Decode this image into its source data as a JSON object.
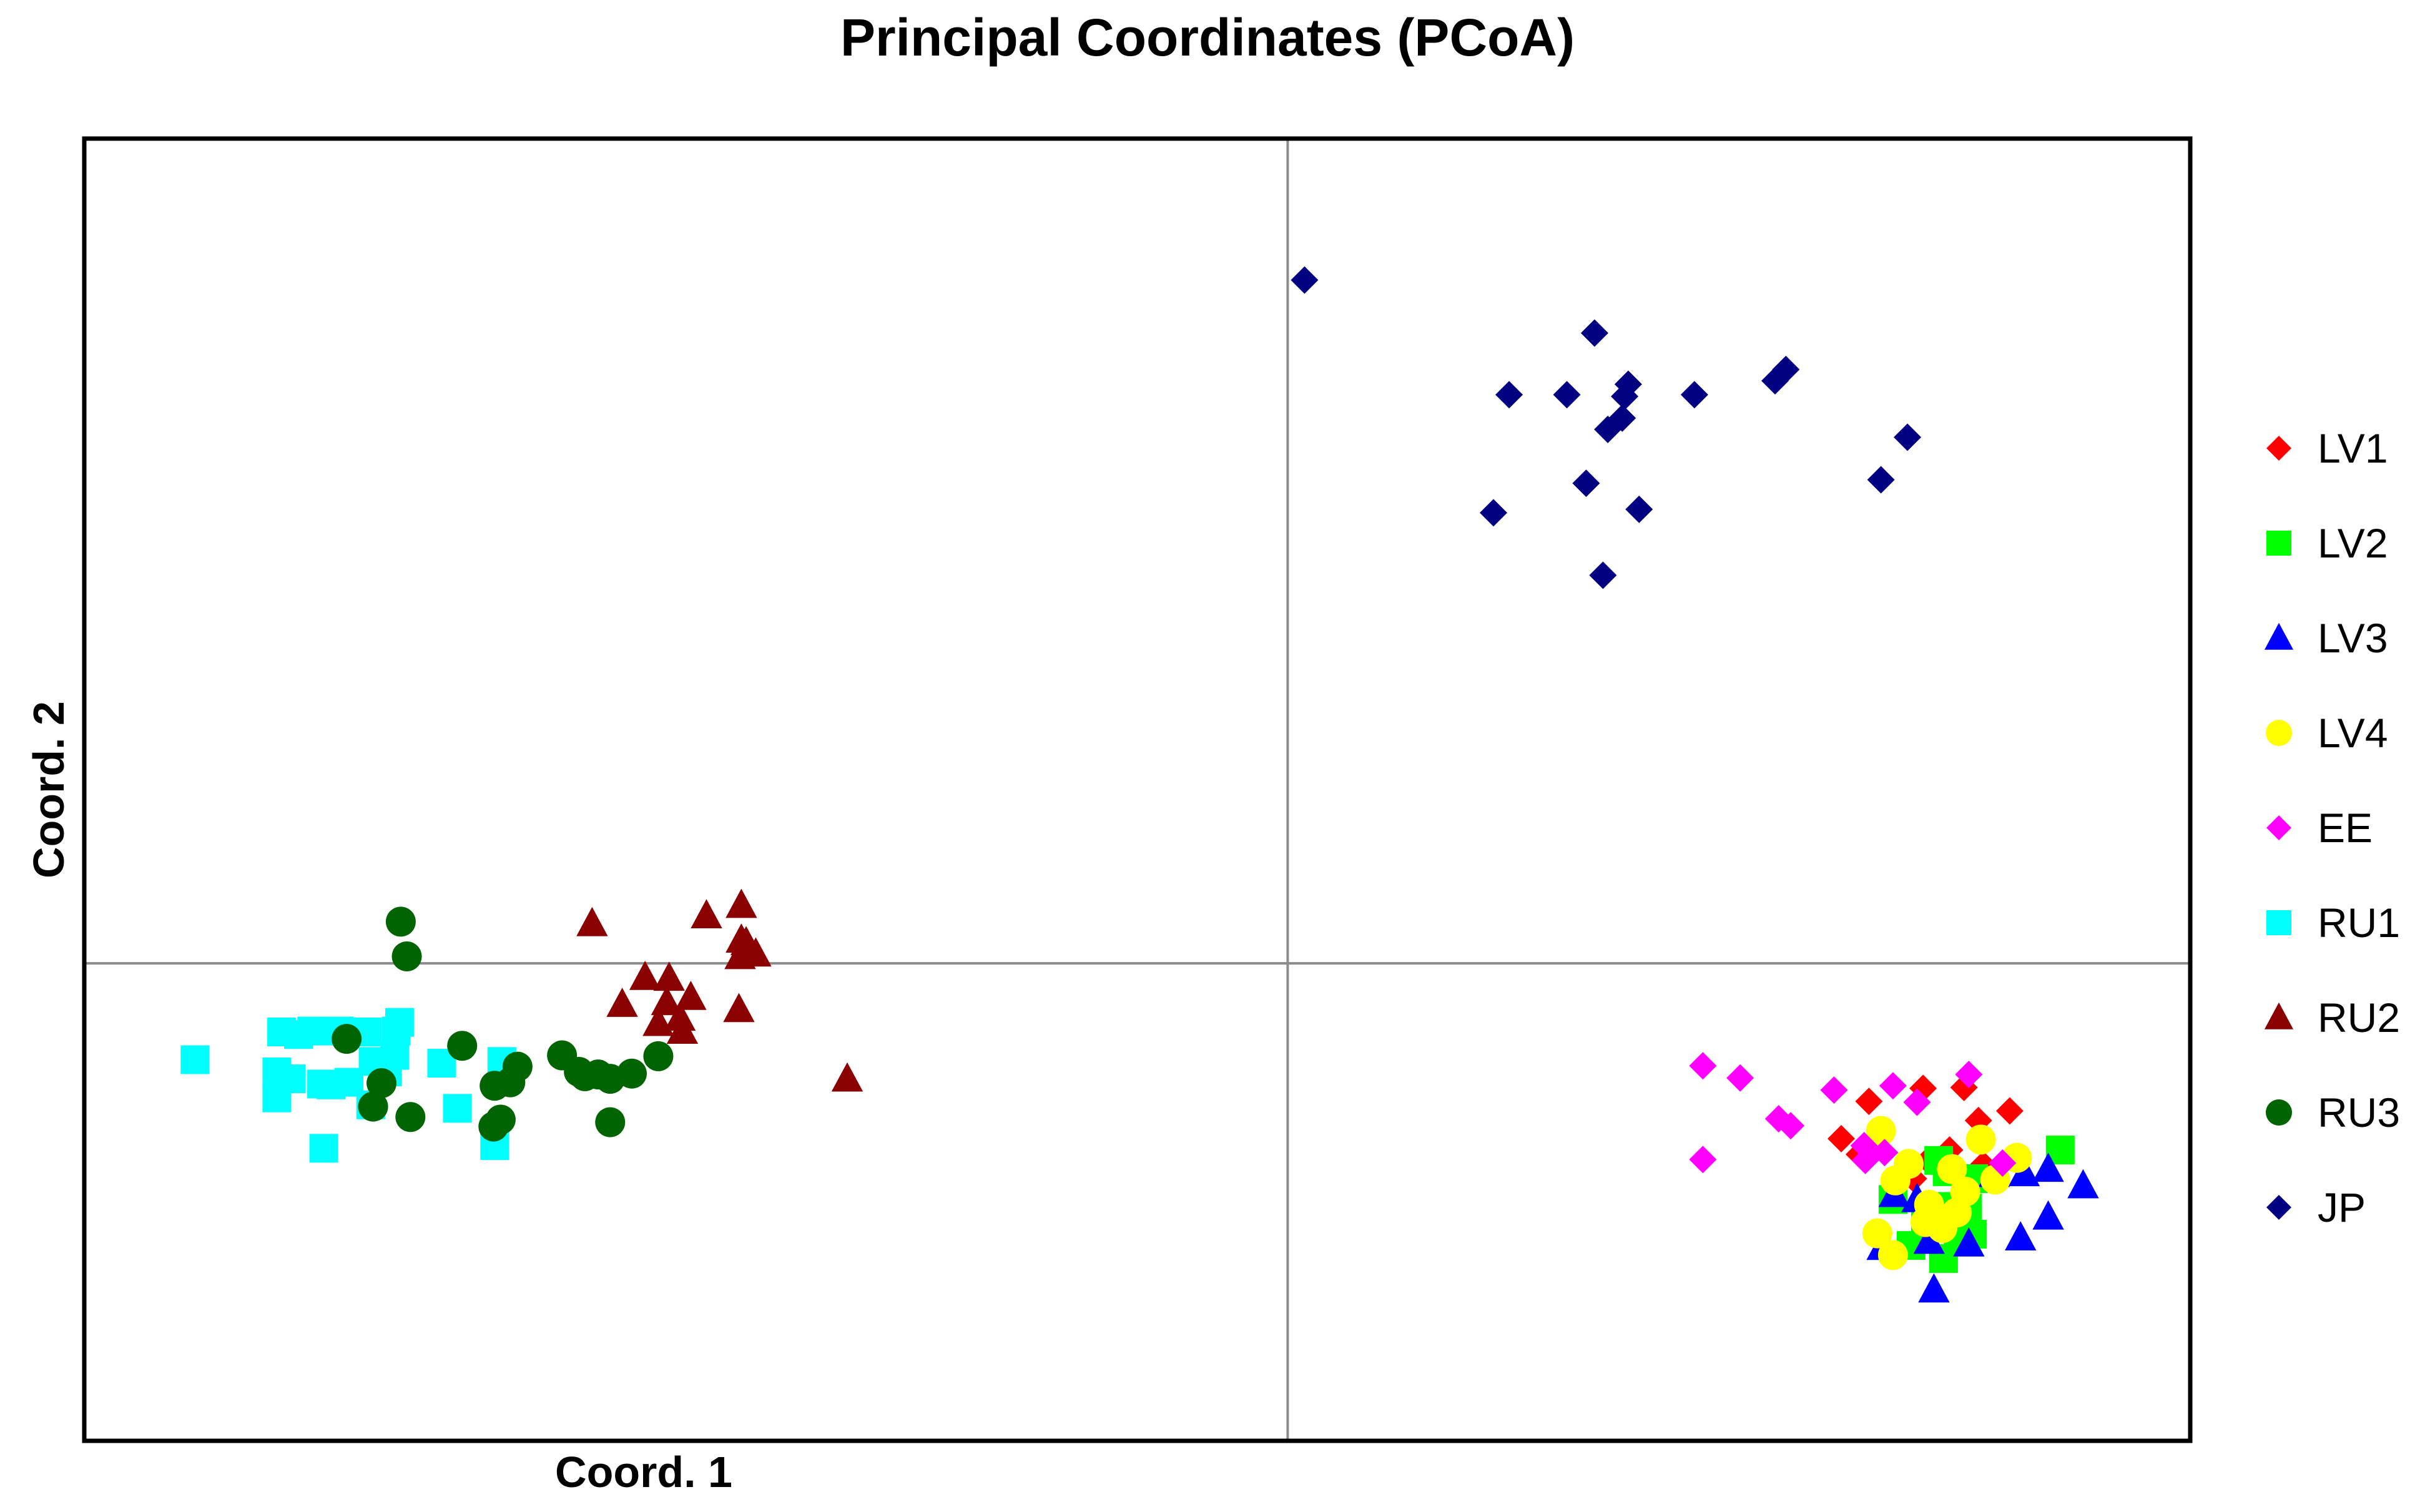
{
  "chart_data": {
    "type": "scatter",
    "title": "Principal Coordinates (PCoA)",
    "xlabel": "Coord. 1",
    "ylabel": "Coord. 2",
    "xlim": [
      -1.0,
      0.75
    ],
    "ylim": [
      -0.55,
      0.95
    ],
    "reference_lines": {
      "x": 0,
      "y": 0
    },
    "tick_labels": false,
    "legend_position": "right",
    "series": [
      {
        "name": "LV1",
        "marker": "diamond",
        "color": "#FF0000",
        "points": [
          [
            0.483,
            -0.159
          ],
          [
            0.528,
            -0.144
          ],
          [
            0.562,
            -0.143
          ],
          [
            0.574,
            -0.181
          ],
          [
            0.6,
            -0.17
          ],
          [
            0.46,
            -0.202
          ],
          [
            0.475,
            -0.22
          ],
          [
            0.532,
            -0.227
          ],
          [
            0.55,
            -0.215
          ],
          [
            0.578,
            -0.232
          ],
          [
            0.52,
            -0.248
          ],
          [
            0.548,
            -0.24
          ]
        ]
      },
      {
        "name": "LV2",
        "marker": "square",
        "color": "#00FF00",
        "points": [
          [
            0.642,
            -0.215
          ],
          [
            0.541,
            -0.227
          ],
          [
            0.548,
            -0.24
          ],
          [
            0.57,
            -0.248
          ],
          [
            0.503,
            -0.272
          ],
          [
            0.546,
            -0.28
          ],
          [
            0.565,
            -0.282
          ],
          [
            0.53,
            -0.3
          ],
          [
            0.557,
            -0.31
          ],
          [
            0.569,
            -0.312
          ],
          [
            0.545,
            -0.34
          ],
          [
            0.518,
            -0.325
          ]
        ]
      },
      {
        "name": "LV3",
        "marker": "triangle",
        "color": "#0000FF",
        "points": [
          [
            0.632,
            -0.237
          ],
          [
            0.612,
            -0.242
          ],
          [
            0.587,
            -0.243
          ],
          [
            0.661,
            -0.256
          ],
          [
            0.504,
            -0.266
          ],
          [
            0.523,
            -0.272
          ],
          [
            0.632,
            -0.292
          ],
          [
            0.609,
            -0.316
          ],
          [
            0.494,
            -0.327
          ],
          [
            0.533,
            -0.32
          ],
          [
            0.566,
            -0.323
          ],
          [
            0.537,
            -0.376
          ]
        ]
      },
      {
        "name": "LV4",
        "marker": "circle",
        "color": "#FFFF00",
        "points": [
          [
            0.493,
            -0.193
          ],
          [
            0.576,
            -0.203
          ],
          [
            0.606,
            -0.224
          ],
          [
            0.516,
            -0.231
          ],
          [
            0.552,
            -0.237
          ],
          [
            0.588,
            -0.249
          ],
          [
            0.505,
            -0.25
          ],
          [
            0.563,
            -0.263
          ],
          [
            0.533,
            -0.278
          ],
          [
            0.556,
            -0.287
          ],
          [
            0.53,
            -0.298
          ],
          [
            0.544,
            -0.305
          ],
          [
            0.49,
            -0.311
          ],
          [
            0.503,
            -0.336
          ]
        ]
      },
      {
        "name": "EE",
        "marker": "diamond",
        "color": "#FF00FF",
        "points": [
          [
            0.345,
            -0.118
          ],
          [
            0.376,
            -0.132
          ],
          [
            0.454,
            -0.146
          ],
          [
            0.503,
            -0.141
          ],
          [
            0.566,
            -0.128
          ],
          [
            0.523,
            -0.16
          ],
          [
            0.408,
            -0.179
          ],
          [
            0.418,
            -0.187
          ],
          [
            0.479,
            -0.21
          ],
          [
            0.496,
            -0.218
          ],
          [
            0.345,
            -0.226
          ],
          [
            0.48,
            -0.227
          ],
          [
            0.594,
            -0.23
          ]
        ]
      },
      {
        "name": "RU1",
        "marker": "square",
        "color": "#00FFFF",
        "points": [
          [
            -0.908,
            -0.111
          ],
          [
            -0.836,
            -0.079
          ],
          [
            -0.822,
            -0.082
          ],
          [
            -0.811,
            -0.078
          ],
          [
            -0.788,
            -0.078
          ],
          [
            -0.765,
            -0.079
          ],
          [
            -0.738,
            -0.068
          ],
          [
            -0.84,
            -0.125
          ],
          [
            -0.828,
            -0.133
          ],
          [
            -0.803,
            -0.139
          ],
          [
            -0.795,
            -0.14
          ],
          [
            -0.78,
            -0.137
          ],
          [
            -0.76,
            -0.113
          ],
          [
            -0.742,
            -0.106
          ],
          [
            -0.748,
            -0.125
          ],
          [
            -0.84,
            -0.155
          ],
          [
            -0.762,
            -0.163
          ],
          [
            -0.703,
            -0.115
          ],
          [
            -0.69,
            -0.167
          ],
          [
            -0.801,
            -0.213
          ],
          [
            -0.659,
            -0.21
          ],
          [
            -0.653,
            -0.113
          ],
          [
            -0.741,
            -0.078
          ]
        ]
      },
      {
        "name": "RU2",
        "marker": "triangle",
        "color": "#8B0000",
        "points": [
          [
            -0.578,
            0.046
          ],
          [
            -0.483,
            0.055
          ],
          [
            -0.454,
            0.067
          ],
          [
            -0.454,
            0.027
          ],
          [
            -0.45,
            0.024
          ],
          [
            -0.455,
            0.008
          ],
          [
            -0.442,
            0.011
          ],
          [
            -0.514,
            -0.017
          ],
          [
            -0.534,
            -0.016
          ],
          [
            -0.496,
            -0.039
          ],
          [
            -0.516,
            -0.045
          ],
          [
            -0.505,
            -0.063
          ],
          [
            -0.503,
            -0.078
          ],
          [
            -0.523,
            -0.069
          ],
          [
            -0.553,
            -0.047
          ],
          [
            -0.456,
            -0.053
          ],
          [
            -0.366,
            -0.133
          ]
        ]
      },
      {
        "name": "RU3",
        "marker": "circle",
        "color": "#006400",
        "points": [
          [
            -0.737,
            0.048
          ],
          [
            -0.732,
            0.008
          ],
          [
            -0.686,
            -0.095
          ],
          [
            -0.782,
            -0.087
          ],
          [
            -0.64,
            -0.119
          ],
          [
            -0.603,
            -0.106
          ],
          [
            -0.589,
            -0.125
          ],
          [
            -0.584,
            -0.13
          ],
          [
            -0.573,
            -0.128
          ],
          [
            -0.563,
            -0.133
          ],
          [
            -0.545,
            -0.127
          ],
          [
            -0.523,
            -0.107
          ],
          [
            -0.563,
            -0.183
          ],
          [
            -0.646,
            -0.137
          ],
          [
            -0.659,
            -0.141
          ],
          [
            -0.654,
            -0.18
          ],
          [
            -0.66,
            -0.188
          ],
          [
            -0.753,
            -0.138
          ],
          [
            -0.76,
            -0.165
          ],
          [
            -0.729,
            -0.177
          ]
        ]
      },
      {
        "name": "JP",
        "marker": "diamond",
        "color": "#000080",
        "points": [
          [
            0.014,
            0.787
          ],
          [
            0.255,
            0.726
          ],
          [
            0.184,
            0.655
          ],
          [
            0.232,
            0.655
          ],
          [
            0.283,
            0.667
          ],
          [
            0.28,
            0.653
          ],
          [
            0.338,
            0.655
          ],
          [
            0.405,
            0.671
          ],
          [
            0.414,
            0.684
          ],
          [
            0.278,
            0.628
          ],
          [
            0.266,
            0.615
          ],
          [
            0.515,
            0.606
          ],
          [
            0.493,
            0.557
          ],
          [
            0.171,
            0.519
          ],
          [
            0.248,
            0.553
          ],
          [
            0.292,
            0.523
          ],
          [
            0.262,
            0.447
          ]
        ]
      }
    ]
  }
}
